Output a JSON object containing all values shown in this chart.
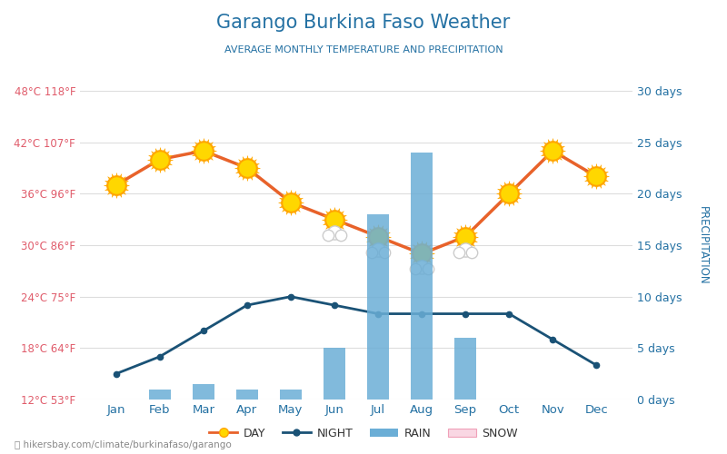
{
  "title": "Garango Burkina Faso Weather",
  "subtitle": "AVERAGE MONTHLY TEMPERATURE AND PRECIPITATION",
  "months": [
    "Jan",
    "Feb",
    "Mar",
    "Apr",
    "May",
    "Jun",
    "Jul",
    "Aug",
    "Sep",
    "Oct",
    "Nov",
    "Dec"
  ],
  "day_temp": [
    37,
    40,
    41,
    39,
    35,
    33,
    31,
    29,
    31,
    36,
    41,
    38
  ],
  "night_temp": [
    15,
    17,
    20,
    23,
    24,
    23,
    22,
    22,
    22,
    22,
    19,
    16
  ],
  "rain_days": [
    0,
    1,
    1.5,
    1,
    1,
    5,
    18,
    24,
    6,
    0,
    0,
    0
  ],
  "ylim_left": [
    12,
    48
  ],
  "ylim_right": [
    0,
    30
  ],
  "yticks_left_c": [
    12,
    18,
    24,
    30,
    36,
    42,
    48
  ],
  "yticks_left_f": [
    53,
    64,
    75,
    86,
    96,
    107,
    118
  ],
  "yticks_right": [
    0,
    5,
    10,
    15,
    20,
    25,
    30
  ],
  "ytick_labels_right": [
    "0 days",
    "5 days",
    "10 days",
    "15 days",
    "20 days",
    "25 days",
    "30 days"
  ],
  "day_color": "#e8622a",
  "night_color": "#1a5276",
  "bar_color": "#6baed6",
  "title_color": "#2471a3",
  "subtitle_color": "#2471a3",
  "left_tick_color": "#e05c6b",
  "right_tick_color": "#2471a3",
  "xlabel_color": "#2471a3",
  "ylabel_left_color": "#666666",
  "ylabel_right_color": "#2471a3",
  "background_color": "#ffffff",
  "grid_color": "#dddddd",
  "watermark": "hikersbay.com/climate/burkinafaso/garango",
  "legend_day": "DAY",
  "legend_night": "NIGHT",
  "legend_rain": "RAIN",
  "legend_snow": "SNOW",
  "sun_color": "#FFD700",
  "sun_edge_color": "#FFA500",
  "cloud_color": "#cccccc"
}
